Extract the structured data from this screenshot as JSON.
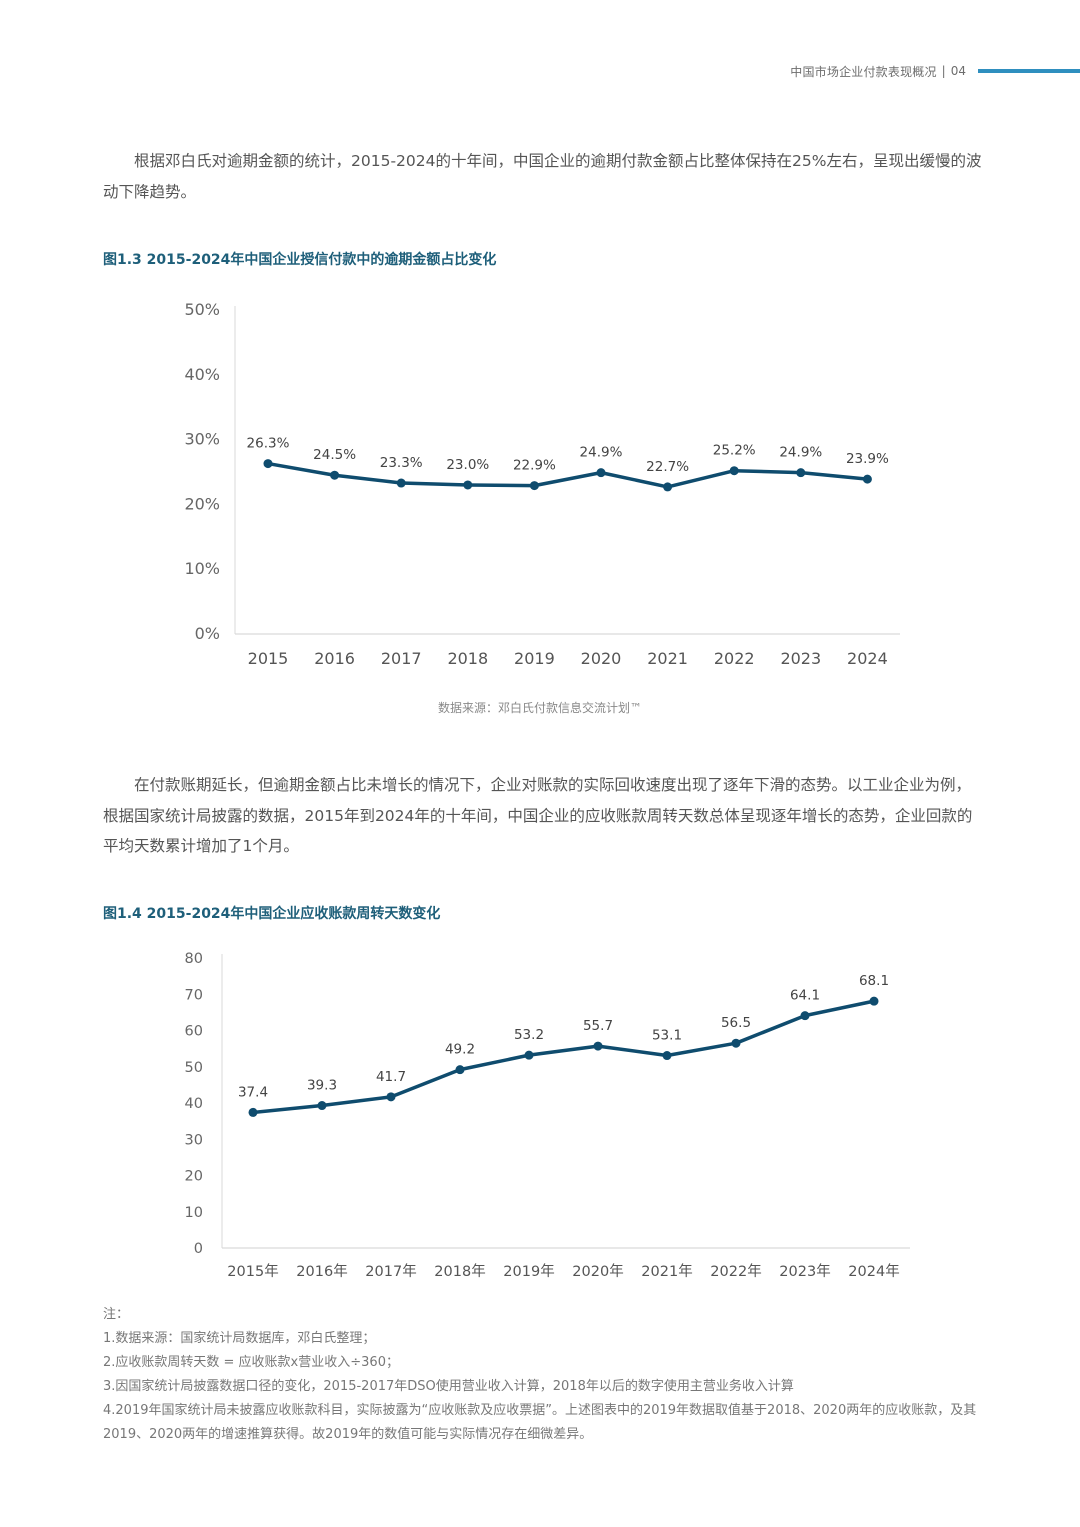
{
  "header": {
    "section_title": "中国市场企业付款表现概况",
    "separator": "|",
    "page_number": "04",
    "accent_color": "#2f8fbf"
  },
  "paragraph1": "根据邓白氏对逾期金额的统计，2015-2024的十年间，中国企业的逾期付款金额占比整体保持在25%左右，呈现出缓慢的波动下降趋势。",
  "figure1": {
    "title": "图1.3 2015-2024年中国企业授信付款中的逾期金额占比变化",
    "source": "数据来源：邓白氏付款信息交流计划™"
  },
  "paragraph2": "在付款账期延长，但逾期金额占比未增长的情况下，企业对账款的实际回收速度出现了逐年下滑的态势。以工业企业为例，根据国家统计局披露的数据，2015年到2024年的十年间，中国企业的应收账款周转天数总体呈现逐年增长的态势，企业回款的平均天数累计增加了1个月。",
  "figure2": {
    "title": "图1.4 2015-2024年中国企业应收账款周转天数变化"
  },
  "notes": {
    "heading": "注：",
    "lines": [
      "1.数据来源：国家统计局数据库，邓白氏整理；",
      "2.应收账款周转天数 = 应收账款x营业收入÷360；",
      "3.因国家统计局披露数据口径的变化，2015-2017年DSO使用营业收入计算，2018年以后的数字使用主营业务收入计算",
      "4.2019年国家统计局未披露应收账款科目，实际披露为“应收账款及应收票据”。上述图表中的2019年数据取值基于2018、2020两年的应收账款，及其2019、2020两年的增速推算获得。故2019年的数值可能与实际情况存在细微差异。"
    ]
  },
  "chart_data": [
    {
      "type": "line",
      "title": "图1.3 2015-2024年中国企业授信付款中的逾期金额占比变化",
      "xlabel": "",
      "ylabel": "",
      "x": [
        "2015",
        "2016",
        "2017",
        "2018",
        "2019",
        "2020",
        "2021",
        "2022",
        "2023",
        "2024"
      ],
      "values": [
        26.3,
        24.5,
        23.3,
        23.0,
        22.9,
        24.9,
        22.7,
        25.2,
        24.9,
        23.9
      ],
      "data_labels": [
        "26.3%",
        "24.5%",
        "23.3%",
        "23.0%",
        "22.9%",
        "24.9%",
        "22.7%",
        "25.2%",
        "24.9%",
        "23.9%"
      ],
      "ylim": [
        0,
        50
      ],
      "yticks": [
        "0%",
        "10%",
        "20%",
        "30%",
        "40%",
        "50%"
      ],
      "grid": false,
      "line_color": "#0f4c6e"
    },
    {
      "type": "line",
      "title": "图1.4 2015-2024年中国企业应收账款周转天数变化",
      "xlabel": "",
      "ylabel": "",
      "x": [
        "2015年",
        "2016年",
        "2017年",
        "2018年",
        "2019年",
        "2020年",
        "2021年",
        "2022年",
        "2023年",
        "2024年"
      ],
      "values": [
        37.4,
        39.3,
        41.7,
        49.2,
        53.2,
        55.7,
        53.1,
        56.5,
        64.1,
        68.1
      ],
      "data_labels": [
        "37.4",
        "39.3",
        "41.7",
        "49.2",
        "53.2",
        "55.7",
        "53.1",
        "56.5",
        "64.1",
        "68.1"
      ],
      "ylim": [
        0,
        80
      ],
      "yticks": [
        "0",
        "10",
        "20",
        "30",
        "40",
        "50",
        "60",
        "70",
        "80"
      ],
      "grid": false,
      "line_color": "#0f4c6e"
    }
  ]
}
